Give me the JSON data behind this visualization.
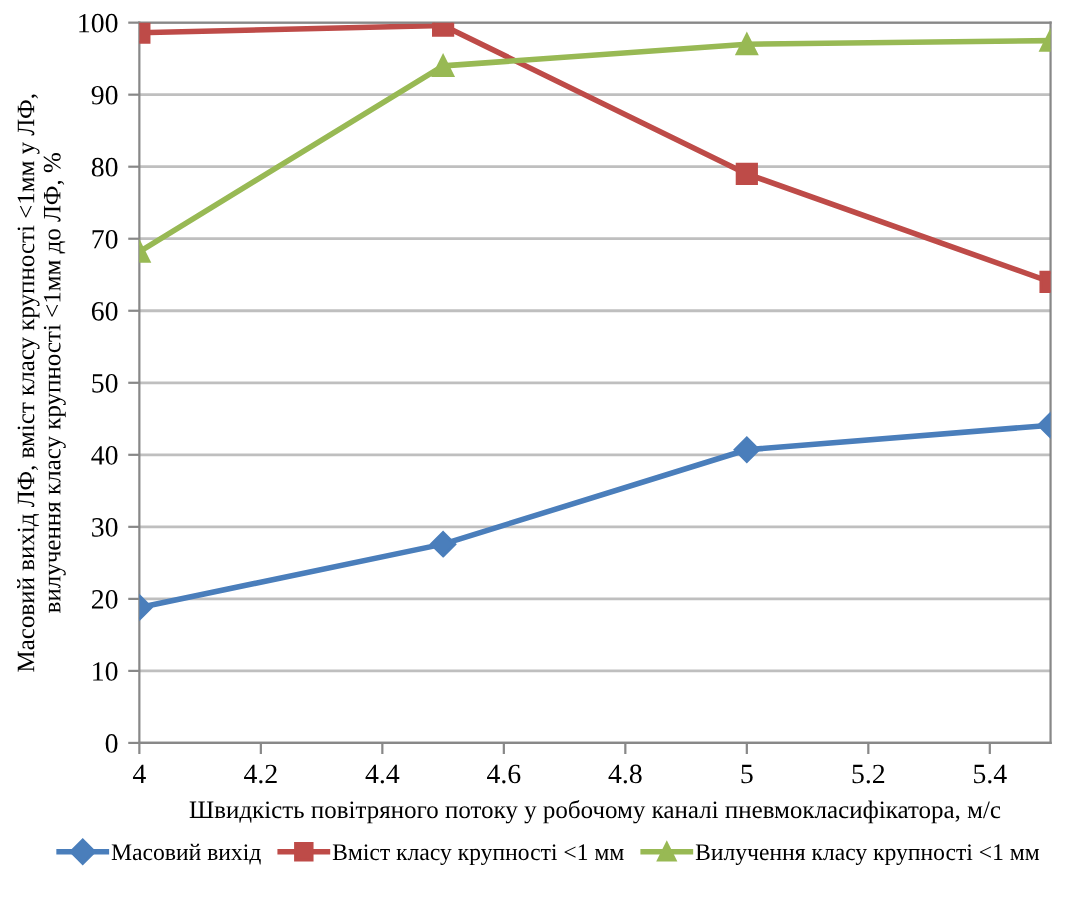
{
  "chart_data": {
    "type": "line",
    "xlabel": "Швидкість повітряного потоку у робочому каналі пневмокласифікатора, м/с",
    "ylabel": "Масовий вихід ЛФ, вміст класу крупності <1мм у ЛФ,\nвилучення класу крупності <1мм до ЛФ, %",
    "x": [
      4,
      4.5,
      5,
      5.5
    ],
    "series": [
      {
        "name": "Масовий вихід",
        "color": "#4a7ebb",
        "marker": "diamond",
        "values": [
          18.8,
          27.6,
          40.7,
          44.1
        ]
      },
      {
        "name": "Вміст класу крупності <1 мм",
        "color": "#be4b48",
        "marker": "square",
        "values": [
          98.6,
          99.6,
          79.0,
          64.0
        ]
      },
      {
        "name": "Вилучення класу крупності <1 мм",
        "color": "#98b954",
        "marker": "triangle",
        "values": [
          68.2,
          94.0,
          97.0,
          97.5
        ]
      }
    ],
    "xlim": [
      4,
      5.5
    ],
    "xticks": [
      4,
      4.2,
      4.4,
      4.6,
      4.8,
      5,
      5.2,
      5.4
    ],
    "ylim": [
      0,
      100
    ],
    "yticks": [
      0,
      10,
      20,
      30,
      40,
      50,
      60,
      70,
      80,
      90,
      100
    ],
    "grid": "y",
    "legend": "bottom",
    "line_style": "solid"
  }
}
